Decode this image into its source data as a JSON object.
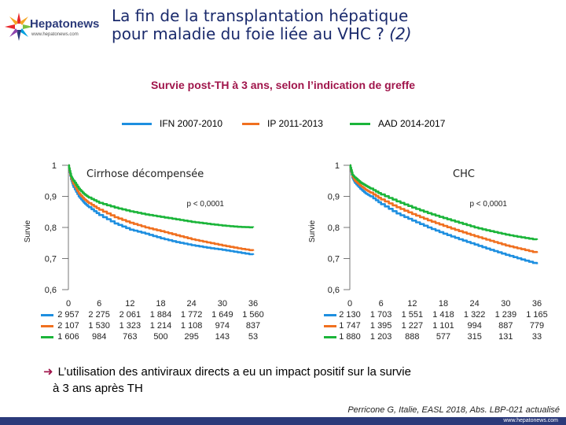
{
  "header": {
    "logo_text": "Hepatonews",
    "logo_url": "www.hepatonews.com",
    "title_line1": "La fin de la transplantation hépatique",
    "title_line2": "pour maladie du foie liée au VHC ?",
    "title_suffix": "(2)"
  },
  "subtitle": "Survie post-TH à 3 ans, selon l’indication de greffe",
  "legend": [
    {
      "label": "IFN 2007-2010",
      "color": "#1e8fe0"
    },
    {
      "label": "IP 2011-2013",
      "color": "#f07020"
    },
    {
      "label": "AAD 2014-2017",
      "color": "#1bb53a"
    }
  ],
  "chart_data": [
    {
      "type": "line",
      "title": "Cirrhose décompensée",
      "ylabel": "Survie",
      "xlabel": "",
      "ylim": [
        0.6,
        1.0
      ],
      "xlim": [
        0,
        36
      ],
      "yticks": [
        "1",
        "0,9",
        "0,8",
        "0,7",
        "0,6"
      ],
      "xticks": [
        "0",
        "6",
        "12",
        "18",
        "24",
        "30",
        "36"
      ],
      "annotation": "p < 0,0001",
      "series": [
        {
          "name": "IFN 2007-2010",
          "color": "#1e8fe0",
          "x": [
            0,
            0.5,
            1,
            2,
            3,
            4,
            6,
            9,
            12,
            15,
            18,
            21,
            24,
            27,
            30,
            33,
            36
          ],
          "y": [
            1.0,
            0.955,
            0.93,
            0.9,
            0.88,
            0.865,
            0.84,
            0.813,
            0.793,
            0.78,
            0.765,
            0.753,
            0.743,
            0.735,
            0.728,
            0.72,
            0.712
          ]
        },
        {
          "name": "IP 2011-2013",
          "color": "#f07020",
          "x": [
            0,
            0.5,
            1,
            2,
            3,
            4,
            6,
            9,
            12,
            15,
            18,
            21,
            24,
            27,
            30,
            33,
            36
          ],
          "y": [
            1.0,
            0.96,
            0.94,
            0.91,
            0.892,
            0.878,
            0.857,
            0.833,
            0.815,
            0.8,
            0.788,
            0.775,
            0.762,
            0.752,
            0.742,
            0.733,
            0.725
          ]
        },
        {
          "name": "AAD 2014-2017",
          "color": "#1bb53a",
          "x": [
            0,
            0.5,
            1,
            2,
            3,
            4,
            6,
            9,
            12,
            15,
            18,
            21,
            24,
            27,
            30,
            33,
            36
          ],
          "y": [
            1.0,
            0.965,
            0.95,
            0.925,
            0.908,
            0.896,
            0.879,
            0.864,
            0.852,
            0.842,
            0.834,
            0.826,
            0.818,
            0.812,
            0.806,
            0.802,
            0.8
          ]
        }
      ],
      "at_risk": {
        "times": [
          "0",
          "6",
          "12",
          "18",
          "24",
          "30",
          "36"
        ],
        "rows": [
          [
            "2 957",
            "2 275",
            "2 061",
            "1 884",
            "1 772",
            "1 649",
            "1 560"
          ],
          [
            "2 107",
            "1 530",
            "1 323",
            "1 214",
            "1 108",
            "974",
            "837"
          ],
          [
            "1 606",
            "984",
            "763",
            "500",
            "295",
            "143",
            "53"
          ]
        ]
      }
    },
    {
      "type": "line",
      "title": "CHC",
      "ylabel": "Survie",
      "xlabel": "",
      "ylim": [
        0.6,
        1.0
      ],
      "xlim": [
        0,
        36
      ],
      "yticks": [
        "1",
        "0,9",
        "0,8",
        "0,7",
        "0,6"
      ],
      "xticks": [
        "0",
        "6",
        "12",
        "18",
        "24",
        "30",
        "36"
      ],
      "annotation": "p < 0,0001",
      "series": [
        {
          "name": "IFN 2007-2010",
          "color": "#1e8fe0",
          "x": [
            0,
            0.5,
            1,
            2,
            3,
            4,
            6,
            9,
            12,
            15,
            18,
            21,
            24,
            27,
            30,
            33,
            36
          ],
          "y": [
            1.0,
            0.96,
            0.943,
            0.925,
            0.91,
            0.9,
            0.875,
            0.845,
            0.822,
            0.8,
            0.78,
            0.762,
            0.745,
            0.728,
            0.712,
            0.697,
            0.682
          ]
        },
        {
          "name": "IP 2011-2013",
          "color": "#f07020",
          "x": [
            0,
            0.5,
            1,
            2,
            3,
            4,
            6,
            9,
            12,
            15,
            18,
            21,
            24,
            27,
            30,
            33,
            36
          ],
          "y": [
            1.0,
            0.965,
            0.95,
            0.935,
            0.922,
            0.912,
            0.89,
            0.865,
            0.843,
            0.823,
            0.805,
            0.788,
            0.772,
            0.757,
            0.742,
            0.73,
            0.718
          ]
        },
        {
          "name": "AAD 2014-2017",
          "color": "#1bb53a",
          "x": [
            0,
            0.5,
            1,
            2,
            3,
            4,
            6,
            9,
            12,
            15,
            18,
            21,
            24,
            27,
            30,
            33,
            36
          ],
          "y": [
            1.0,
            0.97,
            0.96,
            0.945,
            0.935,
            0.925,
            0.906,
            0.884,
            0.864,
            0.846,
            0.83,
            0.815,
            0.8,
            0.788,
            0.777,
            0.768,
            0.76
          ]
        }
      ],
      "at_risk": {
        "times": [
          "0",
          "6",
          "12",
          "18",
          "24",
          "30",
          "36"
        ],
        "rows": [
          [
            "2 130",
            "1 703",
            "1 551",
            "1 418",
            "1 322",
            "1 239",
            "1 165"
          ],
          [
            "1 747",
            "1 395",
            "1 227",
            "1 101",
            "994",
            "887",
            "779"
          ],
          [
            "1 880",
            "1 203",
            "888",
            "577",
            "315",
            "131",
            "33"
          ]
        ]
      }
    }
  ],
  "conclusion": {
    "line1": "L’utilisation des antiviraux directs a eu un impact positif sur la survie",
    "line2": "à 3 ans après TH"
  },
  "reference": "Perricone G, Italie, EASL 2018, Abs. LBP-021 actualisé",
  "footer_url": "www.hepatonews.com"
}
